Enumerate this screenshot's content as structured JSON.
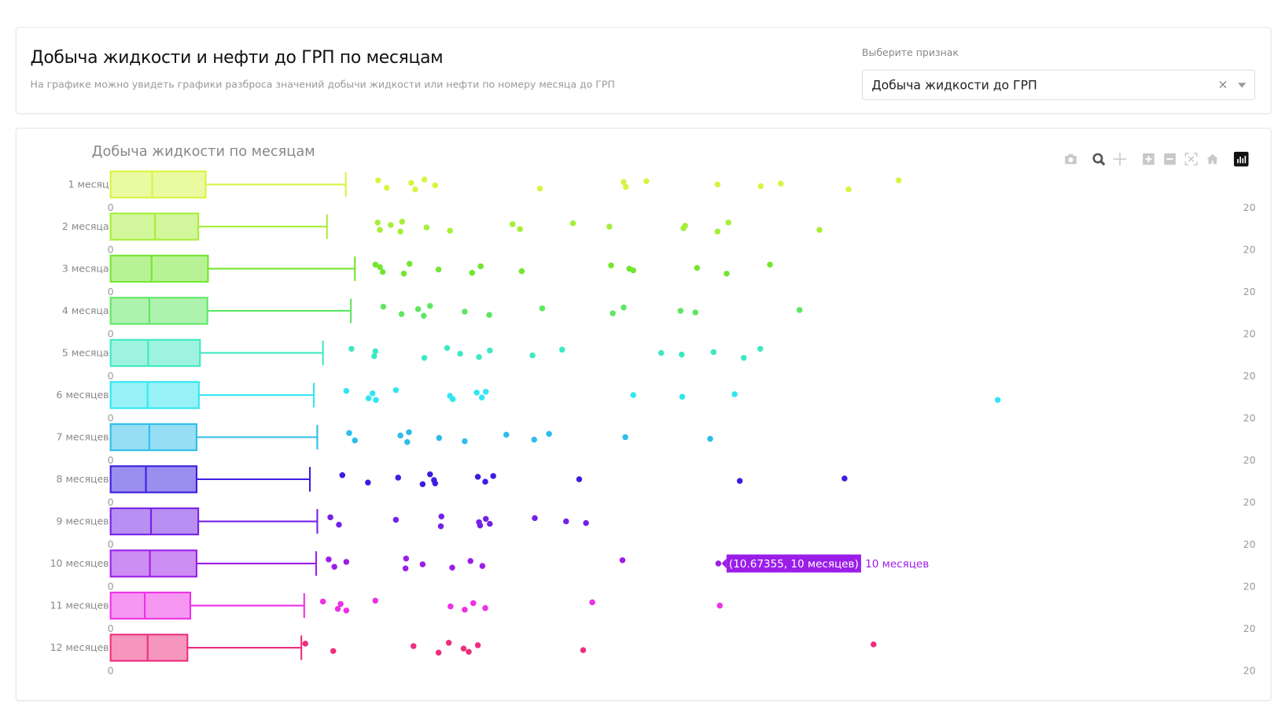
{
  "header": {
    "title": "Добыча жидкости и нефти до ГРП по месяцам",
    "subtitle": "На графике можно увидеть графики разброса значений добычи жидкости или нефти по номеру месяца до ГРП",
    "select_label": "Выберите признак",
    "select_value": "Добыча жидкости до ГРП",
    "clear_icon": "×"
  },
  "toolbar": [
    "camera-icon",
    "zoom-icon",
    "pan-icon",
    "zoom-in-icon",
    "zoom-out-icon",
    "autoscale-icon",
    "reset-axes-icon",
    "plotly-logo-icon"
  ],
  "tooltip": {
    "text": "(10.67355, 10 месяцев)",
    "trace": "10 месяцев",
    "color": "#9b1ee8"
  },
  "chart_data": {
    "type": "box",
    "title": "Добыча жидкости по месяцам",
    "orientation": "horizontal",
    "xlim": [
      0,
      20
    ],
    "x_tick_labels": [
      "0",
      "20"
    ],
    "grid": false,
    "series": [
      {
        "name": "1 месяц",
        "color": "#d6f542",
        "q1": 0,
        "median": 0.73,
        "q3": 1.67,
        "upper_whisker": 4.13,
        "outliers": [
          4.7,
          4.85,
          5.28,
          5.35,
          5.51,
          5.7,
          7.54,
          9.01,
          9.05,
          9.41,
          10.66,
          11.42,
          11.77,
          12.96,
          13.84
        ]
      },
      {
        "name": "2 месяца",
        "color": "#a6ee38",
        "q1": 0,
        "median": 0.78,
        "q3": 1.54,
        "upper_whisker": 3.8,
        "outliers": [
          4.69,
          4.73,
          4.92,
          5.09,
          5.12,
          5.55,
          5.96,
          7.06,
          7.19,
          8.12,
          8.76,
          10.06,
          10.09,
          10.66,
          10.85,
          12.45
        ]
      },
      {
        "name": "3 месяца",
        "color": "#72e62e",
        "q1": 0,
        "median": 0.72,
        "q3": 1.71,
        "upper_whisker": 4.29,
        "outliers": [
          4.65,
          4.78,
          4.73,
          5.15,
          5.25,
          5.76,
          6.35,
          6.5,
          7.22,
          8.79,
          9.11,
          9.18,
          10.3,
          10.82,
          11.58
        ]
      },
      {
        "name": "4 месяца",
        "color": "#5ee662",
        "q1": 0,
        "median": 0.68,
        "q3": 1.7,
        "upper_whisker": 4.22,
        "outliers": [
          4.79,
          5.11,
          5.4,
          5.5,
          5.61,
          6.22,
          6.65,
          7.58,
          8.82,
          9.01,
          10.01,
          10.27,
          12.1
        ]
      },
      {
        "name": "5 месяца",
        "color": "#3ee8c2",
        "q1": 0,
        "median": 0.66,
        "q3": 1.57,
        "upper_whisker": 3.73,
        "outliers": [
          4.23,
          4.63,
          4.65,
          5.51,
          5.91,
          6.14,
          6.47,
          6.66,
          7.41,
          7.93,
          9.67,
          10.03,
          10.59,
          11.12,
          11.41
        ]
      },
      {
        "name": "6 месяцев",
        "color": "#30e6f2",
        "q1": 0,
        "median": 0.65,
        "q3": 1.55,
        "upper_whisker": 3.57,
        "outliers": [
          4.14,
          4.53,
          4.6,
          4.66,
          5.01,
          5.96,
          6.01,
          6.43,
          6.52,
          6.59,
          9.18,
          10.04,
          10.96,
          15.58
        ]
      },
      {
        "name": "7 месяцев",
        "color": "#2cbdea",
        "q1": 0,
        "median": 0.68,
        "q3": 1.51,
        "upper_whisker": 3.63,
        "outliers": [
          4.19,
          4.29,
          5.09,
          5.21,
          5.24,
          5.77,
          6.22,
          6.95,
          7.44,
          7.7,
          9.04,
          10.53
        ]
      },
      {
        "name": "8 месяцев",
        "color": "#3a1ee0",
        "q1": 0,
        "median": 0.62,
        "q3": 1.51,
        "upper_whisker": 3.5,
        "outliers": [
          4.07,
          4.52,
          5.05,
          5.48,
          5.61,
          5.68,
          5.7,
          6.45,
          6.58,
          6.72,
          8.23,
          11.05,
          12.89
        ]
      },
      {
        "name": "9 месяцев",
        "color": "#7420e8",
        "q1": 0,
        "median": 0.71,
        "q3": 1.54,
        "upper_whisker": 3.63,
        "outliers": [
          3.86,
          4.01,
          5.01,
          5.8,
          5.81,
          6.47,
          6.49,
          6.59,
          6.66,
          7.45,
          8.0,
          8.35
        ]
      },
      {
        "name": "10 месяцев",
        "color": "#9b1ee8",
        "q1": 0,
        "median": 0.69,
        "q3": 1.51,
        "upper_whisker": 3.61,
        "outliers": [
          3.83,
          3.93,
          4.14,
          5.18,
          5.19,
          5.48,
          6.0,
          6.32,
          6.53,
          8.99,
          10.67355
        ]
      },
      {
        "name": "11 месяцев",
        "color": "#ee30e6",
        "q1": 0,
        "median": 0.6,
        "q3": 1.4,
        "upper_whisker": 3.4,
        "outliers": [
          3.73,
          3.99,
          4.04,
          4.14,
          4.65,
          5.97,
          6.22,
          6.37,
          6.58,
          8.46,
          10.7
        ]
      },
      {
        "name": "12 месяцев",
        "color": "#ee2e7c",
        "q1": 0,
        "median": 0.65,
        "q3": 1.35,
        "upper_whisker": 3.35,
        "outliers": [
          3.42,
          3.91,
          5.32,
          5.76,
          5.94,
          6.2,
          6.29,
          6.45,
          8.3,
          13.4
        ]
      }
    ]
  }
}
